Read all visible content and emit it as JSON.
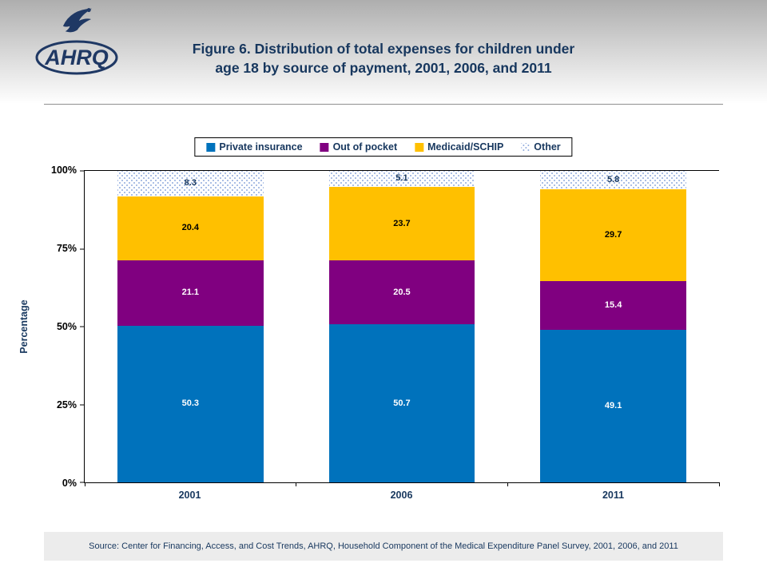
{
  "header": {
    "logo_text": "AHRQ",
    "title_line1": "Figure 6. Distribution of total expenses for children under",
    "title_line2": "age 18 by source of payment, 2001, 2006, and 2011"
  },
  "chart_data": {
    "type": "bar",
    "stacked": true,
    "title": "Figure 6. Distribution of total expenses for children under age 18 by source of payment, 2001, 2006, and 2011",
    "categories": [
      "2001",
      "2006",
      "2011"
    ],
    "series": [
      {
        "name": "Private insurance",
        "color": "#0072BC",
        "label_color": "#FFFFFF",
        "values": [
          50.3,
          50.7,
          49.1
        ]
      },
      {
        "name": "Out of pocket",
        "color": "#800080",
        "label_color": "#FFFFFF",
        "values": [
          21.1,
          20.5,
          15.4
        ]
      },
      {
        "name": "Medicaid/SCHIP",
        "color": "#FFC000",
        "label_color": "#000000",
        "values": [
          20.4,
          23.7,
          29.7
        ]
      },
      {
        "name": "Other",
        "pattern": "dots",
        "dot_color": "#8FAADC",
        "label_color": "#17375E",
        "values": [
          8.3,
          5.1,
          5.8
        ]
      }
    ],
    "ylabel": "Percentage",
    "yticks": [
      "0%",
      "25%",
      "50%",
      "75%",
      "100%"
    ],
    "ylim": [
      0,
      100
    ],
    "legend_position": "top",
    "gridlines": false
  },
  "footer": {
    "source": "Source: Center for Financing, Access, and Cost Trends, AHRQ, Household Component of the Medical Expenditure Panel Survey,  2001, 2006, and 2011"
  }
}
